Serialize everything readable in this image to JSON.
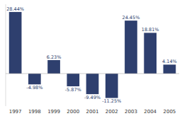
{
  "chart_data": {
    "type": "bar",
    "categories": [
      "1997",
      "1998",
      "1999",
      "2000",
      "2001",
      "2002",
      "2003",
      "2004",
      "2005"
    ],
    "values": [
      28.44,
      -4.98,
      6.23,
      -5.87,
      -9.49,
      -11.25,
      24.45,
      18.81,
      4.14
    ],
    "value_labels": [
      "28.44%",
      "-4.98%",
      "6.23%",
      "-5.87%",
      "-9.49%",
      "-11.25%",
      "24.45%",
      "18.81%",
      "4.14%"
    ],
    "color": "#2e3f6e",
    "ylim": [
      -15,
      32
    ],
    "data_labels": true,
    "tick_labels": "x",
    "grid": false
  }
}
